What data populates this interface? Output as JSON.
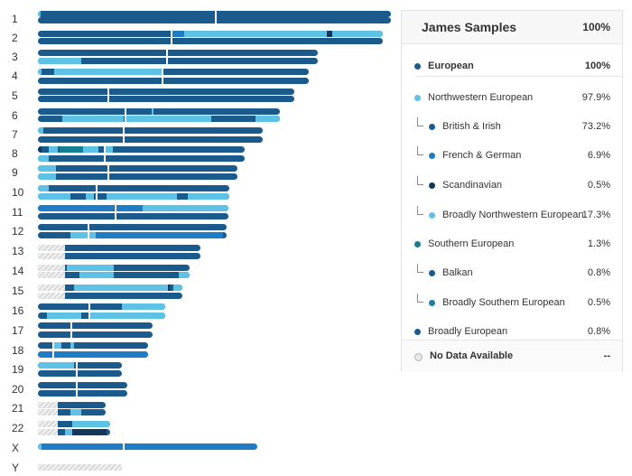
{
  "colors": {
    "european": "#1b5a8c",
    "northwestern": "#5ec2e4",
    "british_irish": "#1b5a8c",
    "french_german": "#1f7cc7",
    "scandinavian": "#13375a",
    "broadly_nw": "#5ec2e4",
    "southern": "#127f93",
    "balkan": "#1b5a8c",
    "broadly_southern": "#1a7fa8",
    "broadly_european": "#1b5a8c",
    "no_data": "#e8e8e8"
  },
  "chromosome_labels": [
    "1",
    "2",
    "3",
    "4",
    "5",
    "6",
    "7",
    "8",
    "9",
    "10",
    "11",
    "12",
    "13",
    "14",
    "15",
    "16",
    "17",
    "18",
    "19",
    "20",
    "21",
    "22",
    "X",
    "Y"
  ],
  "panel": {
    "title": "James Samples",
    "total": "100%",
    "rows": [
      {
        "label": "European",
        "value": "100%",
        "level": 0,
        "bold": true,
        "color": "#1b5a8c"
      },
      {
        "label": "Northwestern European",
        "value": "97.9%",
        "level": 0,
        "bold": false,
        "color": "#5ec2e4"
      },
      {
        "label": "British & Irish",
        "value": "73.2%",
        "level": 1,
        "bold": false,
        "color": "#1b5a8c"
      },
      {
        "label": "French & German",
        "value": "6.9%",
        "level": 1,
        "bold": false,
        "color": "#1f7cc7"
      },
      {
        "label": "Scandinavian",
        "value": "0.5%",
        "level": 1,
        "bold": false,
        "color": "#13375a"
      },
      {
        "label": "Broadly Northwestern European",
        "value": "17.3%",
        "level": 1,
        "bold": false,
        "color": "#5ec2e4"
      },
      {
        "label": "Southern European",
        "value": "1.3%",
        "level": 0,
        "bold": false,
        "color": "#127f93"
      },
      {
        "label": "Balkan",
        "value": "0.8%",
        "level": 1,
        "bold": false,
        "color": "#1b5a8c"
      },
      {
        "label": "Broadly Southern European",
        "value": "0.5%",
        "level": 1,
        "bold": false,
        "color": "#1a7fa8"
      },
      {
        "label": "Broadly European",
        "value": "0.8%",
        "level": 0,
        "bold": false,
        "color": "#1b5a8c"
      }
    ],
    "no_data_label": "No Data Available",
    "no_data_value": "--"
  }
}
